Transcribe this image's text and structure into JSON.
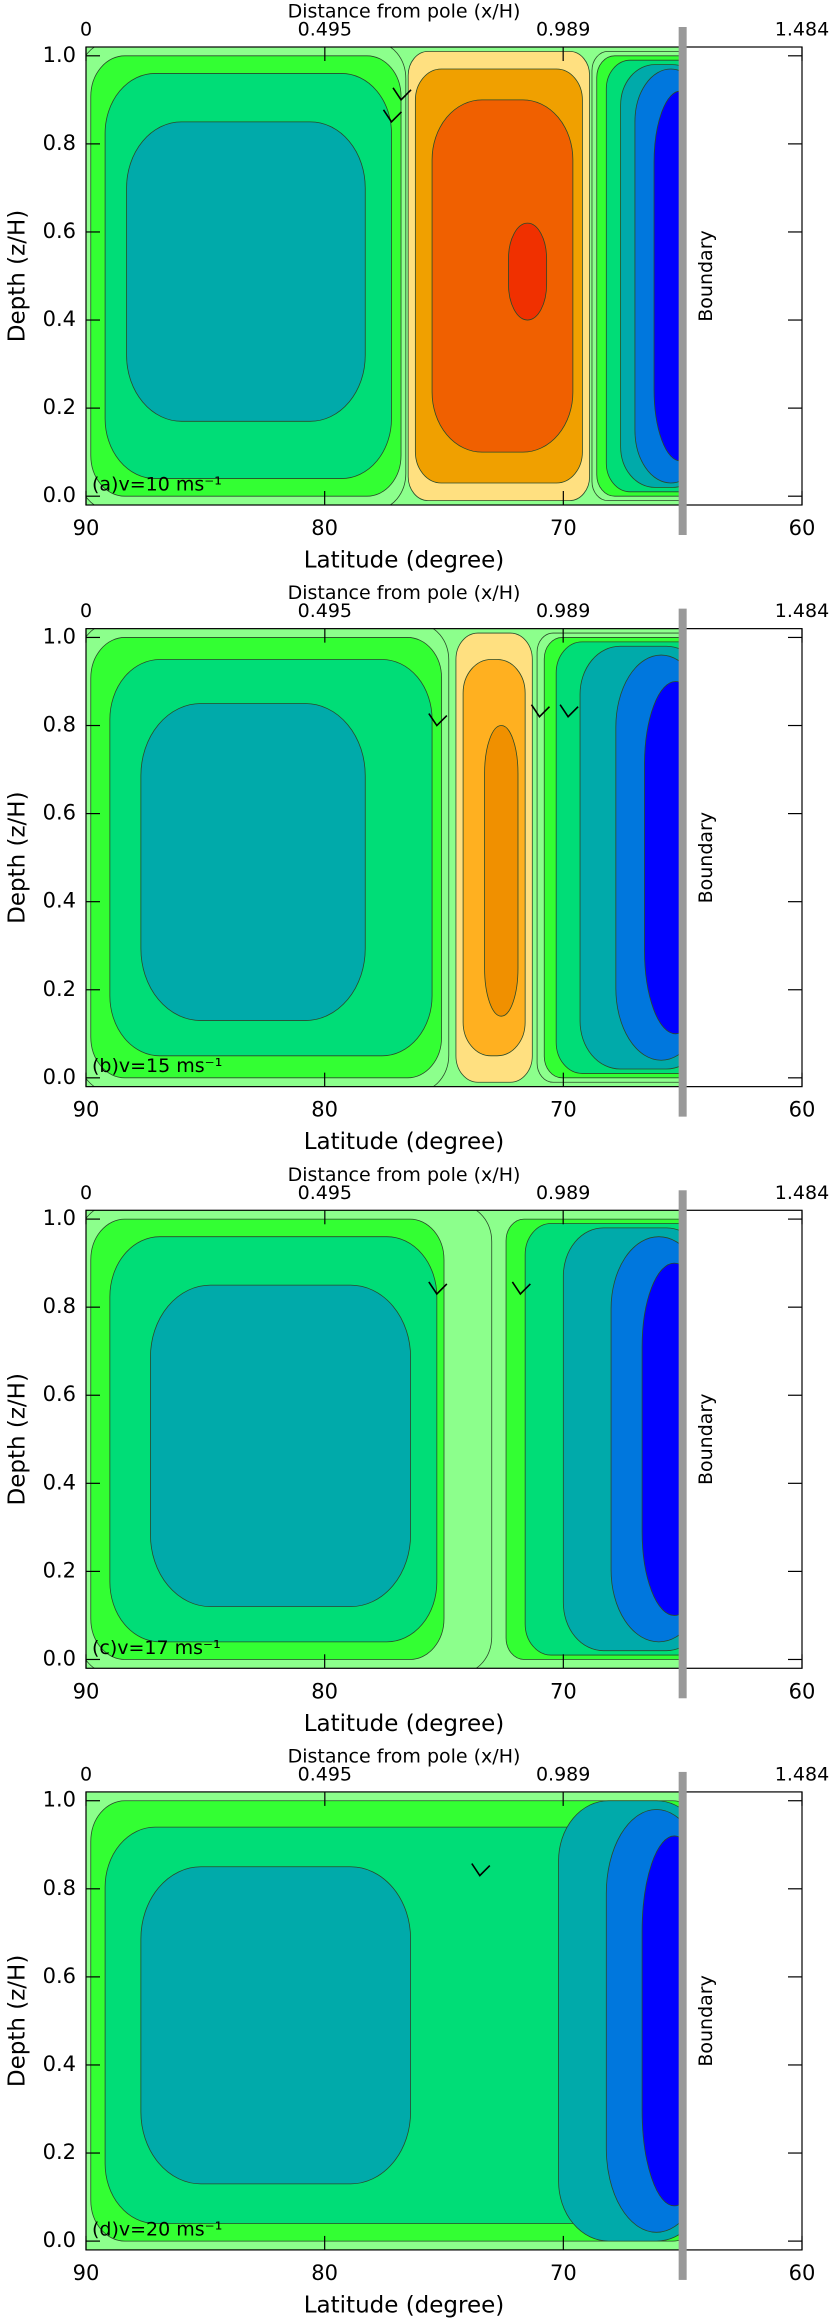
{
  "chart_data": [
    {
      "type": "contour",
      "panel_label": "(a)v=10 ms⁻¹",
      "xlabel": "Latitude (degree)",
      "ylabel": "Depth (z/H)",
      "x2label": "Distance from pole (x/H)",
      "xlim": [
        90,
        60
      ],
      "xticks": [
        90,
        80,
        70,
        60
      ],
      "x2lim": [
        0,
        1.484
      ],
      "x2ticks": [
        0,
        0.495,
        0.989,
        1.484
      ],
      "ylim": [
        -0.02,
        1.02
      ],
      "yticks": [
        {
          "value": 0,
          "label": "0.0"
        },
        {
          "value": 0.2,
          "label": "0.2"
        },
        {
          "value": 0.4,
          "label": "0.4"
        },
        {
          "value": 0.6,
          "label": "0.6"
        },
        {
          "value": 0.8,
          "label": "0.8"
        },
        {
          "value": 1,
          "label": "1.0"
        }
      ],
      "boundary": {
        "value": 65,
        "label": "Boundary"
      }
    },
    {
      "type": "contour",
      "panel_label": "(b)v=15 ms⁻¹",
      "xlabel": "Latitude (degree)",
      "ylabel": "Depth (z/H)",
      "x2label": "Distance from pole (x/H)",
      "xlim": [
        90,
        60
      ],
      "xticks": [
        90,
        80,
        70,
        60
      ],
      "x2lim": [
        0,
        1.484
      ],
      "x2ticks": [
        0,
        0.495,
        0.989,
        1.484
      ],
      "ylim": [
        -0.02,
        1.02
      ],
      "yticks": [
        {
          "value": 0,
          "label": "0.0"
        },
        {
          "value": 0.2,
          "label": "0.2"
        },
        {
          "value": 0.4,
          "label": "0.4"
        },
        {
          "value": 0.6,
          "label": "0.6"
        },
        {
          "value": 0.8,
          "label": "0.8"
        },
        {
          "value": 1,
          "label": "1.0"
        }
      ],
      "boundary": {
        "value": 65,
        "label": "Boundary"
      }
    },
    {
      "type": "contour",
      "panel_label": "(c)v=17 ms⁻¹",
      "xlabel": "Latitude (degree)",
      "ylabel": "Depth (z/H)",
      "x2label": "Distance from pole (x/H)",
      "xlim": [
        90,
        60
      ],
      "xticks": [
        90,
        80,
        70,
        60
      ],
      "x2lim": [
        0,
        1.484
      ],
      "x2ticks": [
        0,
        0.495,
        0.989,
        1.484
      ],
      "ylim": [
        -0.02,
        1.02
      ],
      "yticks": [
        {
          "value": 0,
          "label": "0.0"
        },
        {
          "value": 0.2,
          "label": "0.2"
        },
        {
          "value": 0.4,
          "label": "0.4"
        },
        {
          "value": 0.6,
          "label": "0.6"
        },
        {
          "value": 0.8,
          "label": "0.8"
        },
        {
          "value": 1,
          "label": "1.0"
        }
      ],
      "boundary": {
        "value": 65,
        "label": "Boundary"
      }
    },
    {
      "type": "contour",
      "panel_label": "(d)v=20 ms⁻¹",
      "xlabel": "Latitude (degree)",
      "ylabel": "Depth (z/H)",
      "x2label": "Distance from pole (x/H)",
      "xlim": [
        90,
        60
      ],
      "xticks": [
        90,
        80,
        70,
        60
      ],
      "x2lim": [
        0,
        1.484
      ],
      "x2ticks": [
        0,
        0.495,
        0.989,
        1.484
      ],
      "ylim": [
        -0.02,
        1.02
      ],
      "yticks": [
        {
          "value": 0,
          "label": "0.0"
        },
        {
          "value": 0.2,
          "label": "0.2"
        },
        {
          "value": 0.4,
          "label": "0.4"
        },
        {
          "value": 0.6,
          "label": "0.6"
        },
        {
          "value": 0.8,
          "label": "0.8"
        },
        {
          "value": 1,
          "label": "1.0"
        }
      ],
      "boundary": {
        "value": 65,
        "label": "Boundary"
      }
    }
  ]
}
